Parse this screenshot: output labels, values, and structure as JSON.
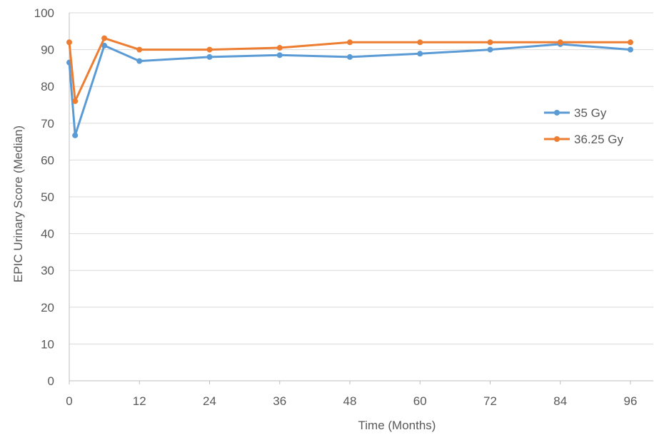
{
  "chart_data": {
    "type": "line",
    "title": "",
    "xlabel": "Time (Months)",
    "ylabel": "EPIC Urinary Score (Median)",
    "xlim": [
      0,
      96
    ],
    "ylim": [
      0,
      100
    ],
    "x_ticks": [
      0,
      12,
      24,
      36,
      48,
      60,
      72,
      84,
      96
    ],
    "y_ticks": [
      0,
      10,
      20,
      30,
      40,
      50,
      60,
      70,
      80,
      90,
      100
    ],
    "grid": "horizontal",
    "legend_position": "right",
    "series": [
      {
        "name": "35 Gy",
        "color": "#5B9BD5",
        "x": [
          0,
          1,
          6,
          12,
          24,
          36,
          48,
          60,
          72,
          84,
          96
        ],
        "y": [
          86.5,
          66.7,
          91.1,
          86.9,
          88.0,
          88.5,
          88.0,
          88.9,
          90.0,
          91.5,
          90.0
        ]
      },
      {
        "name": "36.25 Gy",
        "color": "#ED7D31",
        "x": [
          0,
          1,
          6,
          12,
          24,
          36,
          48,
          60,
          72,
          84,
          96
        ],
        "y": [
          92.0,
          76.0,
          93.1,
          90.0,
          90.0,
          90.5,
          92.0,
          92.0,
          92.0,
          92.0,
          92.0
        ]
      }
    ]
  }
}
